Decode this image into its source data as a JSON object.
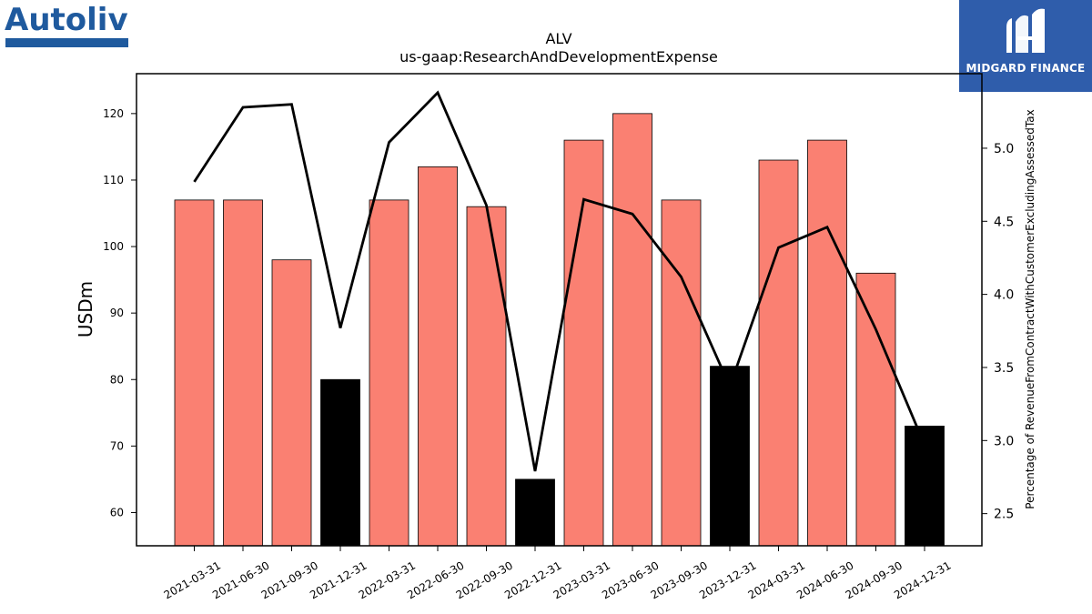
{
  "brand": {
    "name": "Autoliv"
  },
  "badge": {
    "label": "MIDGARD FINANCE"
  },
  "colors": {
    "bar": "#fa8072",
    "bar_highlight": "#000000",
    "line": "#000000",
    "badge_bg": "#2f5dab",
    "logo": "#1f5a9e"
  },
  "chart_data": {
    "type": "bar",
    "title": "ALV",
    "subtitle": "us-gaap:ResearchAndDevelopmentExpense",
    "ylabel": "USDm",
    "ylabel_right": "Percentage of RevenueFromContractWithCustomerExcludingAssessedTax",
    "ylim": [
      55,
      126
    ],
    "ylim_right": [
      2.28,
      5.51
    ],
    "yticks": [
      60,
      70,
      80,
      90,
      100,
      110,
      120
    ],
    "yticks_right": [
      2.5,
      3.0,
      3.5,
      4.0,
      4.5,
      5.0
    ],
    "categories": [
      "2021-03-31",
      "2021-06-30",
      "2021-09-30",
      "2021-12-31",
      "2022-03-31",
      "2022-06-30",
      "2022-09-30",
      "2022-12-31",
      "2023-03-31",
      "2023-06-30",
      "2023-09-30",
      "2023-12-31",
      "2024-03-31",
      "2024-06-30",
      "2024-09-30",
      "2024-12-31"
    ],
    "series": [
      {
        "values": [
          107,
          107,
          98,
          80,
          107,
          112,
          106,
          65,
          116,
          120,
          107,
          82,
          113,
          116,
          96,
          73
        ],
        "highlight": [
          false,
          false,
          false,
          true,
          false,
          false,
          false,
          true,
          false,
          false,
          false,
          true,
          false,
          false,
          false,
          true
        ]
      },
      {
        "values": [
          4.77,
          5.28,
          5.3,
          3.77,
          5.04,
          5.38,
          4.61,
          2.79,
          4.65,
          4.55,
          4.12,
          3.37,
          4.32,
          4.46,
          3.76,
          2.97
        ],
        "axis": "right",
        "type": "line"
      }
    ],
    "grid": false
  }
}
